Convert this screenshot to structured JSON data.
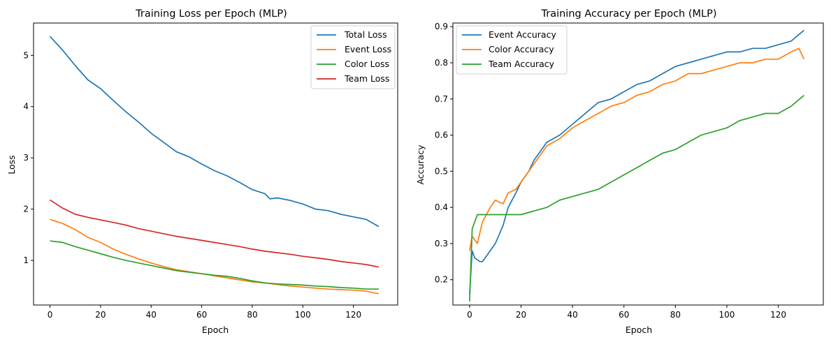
{
  "chart_data": [
    {
      "type": "line",
      "title": "Training Loss per Epoch (MLP)",
      "xlabel": "Epoch",
      "ylabel": "Loss",
      "xlim": [
        -6.5,
        137.5
      ],
      "ylim": [
        0.13,
        5.63
      ],
      "xticks": [
        0,
        20,
        40,
        60,
        80,
        100,
        120
      ],
      "yticks": [
        1,
        2,
        3,
        4,
        5
      ],
      "grid": false,
      "legend": "top-right",
      "series": [
        {
          "name": "Total Loss",
          "color": "#1f77b4",
          "x": [
            0,
            5,
            10,
            15,
            20,
            25,
            30,
            35,
            40,
            45,
            50,
            55,
            60,
            65,
            70,
            75,
            80,
            85,
            87,
            90,
            95,
            100,
            105,
            110,
            115,
            120,
            125,
            130
          ],
          "y": [
            5.37,
            5.1,
            4.8,
            4.52,
            4.35,
            4.12,
            3.9,
            3.7,
            3.48,
            3.3,
            3.12,
            3.02,
            2.88,
            2.75,
            2.65,
            2.52,
            2.38,
            2.3,
            2.2,
            2.22,
            2.17,
            2.1,
            2.0,
            1.97,
            1.9,
            1.85,
            1.8,
            1.66
          ]
        },
        {
          "name": "Event Loss",
          "color": "#ff7f0e",
          "x": [
            0,
            5,
            10,
            15,
            20,
            25,
            30,
            35,
            40,
            45,
            50,
            55,
            60,
            65,
            70,
            75,
            80,
            85,
            90,
            95,
            100,
            105,
            110,
            115,
            120,
            125,
            130
          ],
          "y": [
            1.8,
            1.72,
            1.6,
            1.45,
            1.35,
            1.22,
            1.12,
            1.03,
            0.95,
            0.88,
            0.82,
            0.78,
            0.74,
            0.7,
            0.66,
            0.62,
            0.58,
            0.56,
            0.53,
            0.5,
            0.48,
            0.46,
            0.44,
            0.43,
            0.42,
            0.4,
            0.35
          ]
        },
        {
          "name": "Color Loss",
          "color": "#2ca02c",
          "x": [
            0,
            5,
            10,
            15,
            20,
            25,
            30,
            35,
            40,
            45,
            50,
            55,
            60,
            65,
            70,
            75,
            80,
            85,
            90,
            95,
            100,
            105,
            110,
            115,
            120,
            125,
            130
          ],
          "y": [
            1.38,
            1.35,
            1.27,
            1.2,
            1.13,
            1.06,
            1.0,
            0.95,
            0.9,
            0.85,
            0.8,
            0.77,
            0.74,
            0.71,
            0.69,
            0.65,
            0.6,
            0.56,
            0.54,
            0.53,
            0.52,
            0.5,
            0.49,
            0.47,
            0.46,
            0.44,
            0.44
          ]
        },
        {
          "name": "Team Loss",
          "color": "#d62728",
          "x": [
            0,
            5,
            10,
            15,
            20,
            25,
            30,
            35,
            40,
            45,
            50,
            55,
            60,
            65,
            70,
            75,
            80,
            85,
            90,
            95,
            100,
            105,
            110,
            115,
            120,
            125,
            130
          ],
          "y": [
            2.18,
            2.02,
            1.9,
            1.84,
            1.79,
            1.74,
            1.69,
            1.62,
            1.57,
            1.52,
            1.47,
            1.43,
            1.39,
            1.35,
            1.31,
            1.27,
            1.22,
            1.18,
            1.15,
            1.12,
            1.08,
            1.05,
            1.02,
            0.98,
            0.95,
            0.92,
            0.87
          ]
        }
      ]
    },
    {
      "type": "line",
      "title": "Training Accuracy per Epoch (MLP)",
      "xlabel": "Epoch",
      "ylabel": "Accuracy",
      "xlim": [
        -6.5,
        137.5
      ],
      "ylim": [
        0.13,
        0.91
      ],
      "xticks": [
        0,
        20,
        40,
        60,
        80,
        100,
        120
      ],
      "yticks": [
        0.2,
        0.3,
        0.4,
        0.5,
        0.6,
        0.7,
        0.8,
        0.9
      ],
      "grid": false,
      "legend": "top-left",
      "series": [
        {
          "name": "Event Accuracy",
          "color": "#1f77b4",
          "x": [
            0,
            1,
            2,
            4,
            5,
            7,
            10,
            13,
            15,
            18,
            20,
            23,
            25,
            28,
            30,
            35,
            40,
            45,
            50,
            55,
            60,
            65,
            70,
            75,
            80,
            85,
            90,
            95,
            100,
            105,
            110,
            115,
            120,
            125,
            130
          ],
          "y": [
            0.16,
            0.28,
            0.26,
            0.25,
            0.25,
            0.27,
            0.3,
            0.35,
            0.4,
            0.44,
            0.47,
            0.5,
            0.53,
            0.56,
            0.58,
            0.6,
            0.63,
            0.66,
            0.69,
            0.7,
            0.72,
            0.74,
            0.75,
            0.77,
            0.79,
            0.8,
            0.81,
            0.82,
            0.83,
            0.83,
            0.84,
            0.84,
            0.85,
            0.86,
            0.89
          ]
        },
        {
          "name": "Color Accuracy",
          "color": "#ff7f0e",
          "x": [
            0,
            1,
            3,
            5,
            8,
            10,
            13,
            15,
            18,
            20,
            23,
            25,
            28,
            30,
            35,
            40,
            45,
            50,
            55,
            60,
            65,
            70,
            75,
            80,
            85,
            90,
            95,
            100,
            105,
            110,
            115,
            120,
            125,
            128,
            130
          ],
          "y": [
            0.28,
            0.32,
            0.3,
            0.36,
            0.4,
            0.42,
            0.41,
            0.44,
            0.45,
            0.47,
            0.5,
            0.52,
            0.55,
            0.57,
            0.59,
            0.62,
            0.64,
            0.66,
            0.68,
            0.69,
            0.71,
            0.72,
            0.74,
            0.75,
            0.77,
            0.77,
            0.78,
            0.79,
            0.8,
            0.8,
            0.81,
            0.81,
            0.83,
            0.84,
            0.81
          ]
        },
        {
          "name": "Team Accuracy",
          "color": "#2ca02c",
          "x": [
            0,
            1,
            3,
            5,
            10,
            15,
            20,
            25,
            30,
            35,
            40,
            45,
            50,
            55,
            60,
            65,
            70,
            75,
            80,
            85,
            90,
            95,
            100,
            105,
            110,
            115,
            120,
            125,
            130
          ],
          "y": [
            0.14,
            0.34,
            0.38,
            0.38,
            0.38,
            0.38,
            0.38,
            0.39,
            0.4,
            0.42,
            0.43,
            0.44,
            0.45,
            0.47,
            0.49,
            0.51,
            0.53,
            0.55,
            0.56,
            0.58,
            0.6,
            0.61,
            0.62,
            0.64,
            0.65,
            0.66,
            0.66,
            0.68,
            0.71
          ]
        }
      ]
    }
  ]
}
